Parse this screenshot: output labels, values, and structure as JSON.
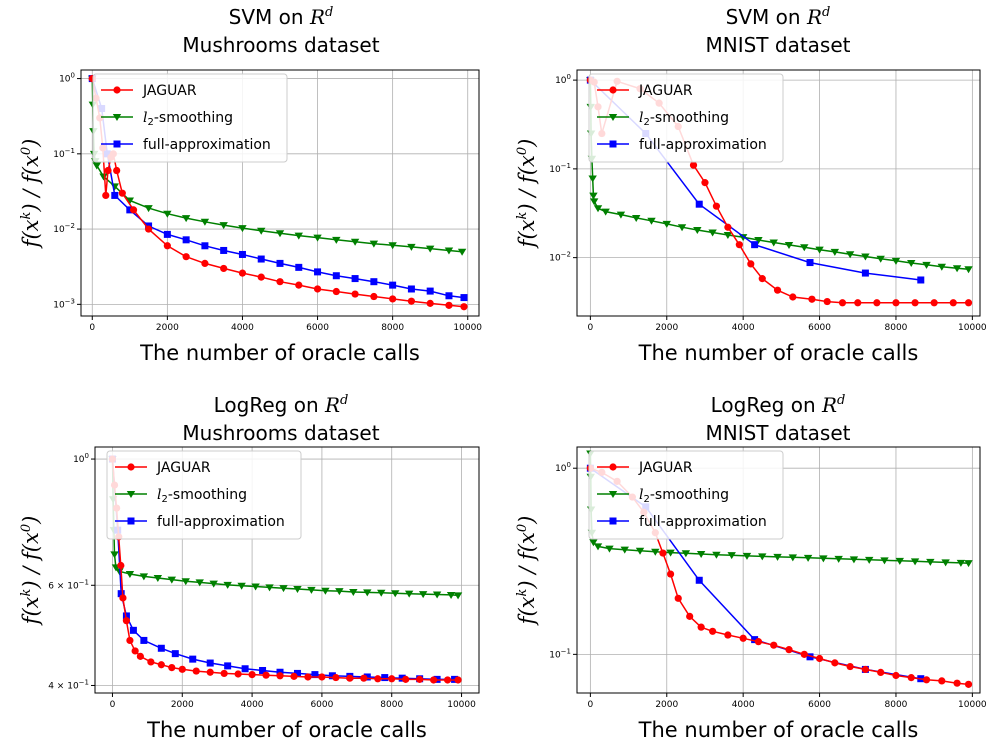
{
  "chart_data": [
    {
      "type": "line",
      "title_prefix": "SVM on ",
      "title_math": "R",
      "title_math_sup": "d",
      "subtitle": "Mushrooms dataset",
      "ylabel": "f(x^k) / f(x^0)",
      "xlabel": "The number of oracle calls",
      "yscale": "log",
      "xlim": [
        -300,
        10300
      ],
      "ylim": [
        0.0007,
        1.3
      ],
      "xticks": [
        0,
        2000,
        4000,
        6000,
        8000,
        10000
      ],
      "xtick_labels": [
        "0",
        "2000",
        "4000",
        "6000",
        "8000",
        "10000"
      ],
      "yticks": [
        0.001,
        0.01,
        0.1,
        1
      ],
      "ytick_labels": [
        "10^-3",
        "10^-2",
        "10^-1",
        "10^0"
      ],
      "grid": true,
      "legend": "top-left",
      "series": [
        {
          "name": "JAGUAR",
          "color": "#ff0000",
          "marker": "circle",
          "x": [
            0,
            100,
            200,
            280,
            360,
            420,
            500,
            560,
            650,
            800,
            1100,
            1500,
            2000,
            2500,
            3000,
            3500,
            4000,
            4500,
            5000,
            5500,
            6000,
            6500,
            7000,
            7500,
            8000,
            8500,
            9000,
            9500,
            9900
          ],
          "y": [
            1.0,
            0.55,
            0.3,
            0.12,
            0.028,
            0.06,
            0.09,
            0.1,
            0.06,
            0.03,
            0.018,
            0.01,
            0.006,
            0.0043,
            0.0035,
            0.003,
            0.0026,
            0.0023,
            0.002,
            0.0018,
            0.0016,
            0.00148,
            0.00137,
            0.00127,
            0.00118,
            0.0011,
            0.00103,
            0.00097,
            0.00093
          ]
        },
        {
          "name": "l2-smoothing",
          "color": "#008000",
          "marker": "triangle-down",
          "x": [
            0,
            15,
            30,
            50,
            80,
            120,
            300,
            600,
            1000,
            1500,
            2000,
            2500,
            3000,
            3500,
            4000,
            4500,
            5000,
            5500,
            6000,
            6500,
            7000,
            7500,
            8000,
            8500,
            9000,
            9500,
            9850
          ],
          "y": [
            1.0,
            0.45,
            0.2,
            0.1,
            0.08,
            0.07,
            0.05,
            0.037,
            0.024,
            0.019,
            0.016,
            0.014,
            0.0125,
            0.0113,
            0.0103,
            0.0095,
            0.0088,
            0.0082,
            0.0077,
            0.0072,
            0.0068,
            0.0064,
            0.0061,
            0.0058,
            0.0055,
            0.0052,
            0.005
          ]
        },
        {
          "name": "full-approximation",
          "color": "#0000ff",
          "marker": "square",
          "x": [
            0,
            250,
            400,
            600,
            1000,
            1500,
            2000,
            2500,
            3000,
            3500,
            4000,
            4500,
            5000,
            5500,
            6000,
            6500,
            7000,
            7500,
            8000,
            8500,
            9000,
            9500,
            9900
          ],
          "y": [
            1.0,
            0.4,
            0.1,
            0.028,
            0.018,
            0.011,
            0.0085,
            0.0072,
            0.006,
            0.0052,
            0.0046,
            0.004,
            0.0035,
            0.0031,
            0.0027,
            0.0024,
            0.0022,
            0.002,
            0.0018,
            0.0016,
            0.0015,
            0.0013,
            0.00123
          ]
        }
      ]
    },
    {
      "type": "line",
      "title_prefix": "SVM on ",
      "title_math": "R",
      "title_math_sup": "d",
      "subtitle": "MNIST dataset",
      "ylabel": "f(x^k) / f(x^0)",
      "xlabel": "The number of oracle calls",
      "yscale": "log",
      "xlim": [
        -350,
        10200
      ],
      "ylim": [
        0.0022,
        1.3
      ],
      "xticks": [
        0,
        2000,
        4000,
        6000,
        8000,
        10000
      ],
      "xtick_labels": [
        "0",
        "2000",
        "4000",
        "6000",
        "8000",
        "10000"
      ],
      "yticks": [
        0.01,
        0.1,
        1
      ],
      "ytick_labels": [
        "10^-2",
        "10^-1",
        "10^0"
      ],
      "grid": true,
      "legend": "top-left",
      "series": [
        {
          "name": "JAGUAR",
          "color": "#ff0000",
          "marker": "circle",
          "x": [
            0,
            100,
            200,
            300,
            700,
            1300,
            1800,
            2300,
            2700,
            3000,
            3300,
            3600,
            3900,
            4200,
            4500,
            4900,
            5300,
            5800,
            6200,
            6600,
            7000,
            7500,
            8000,
            8500,
            9000,
            9500,
            9900
          ],
          "y": [
            1.0,
            0.95,
            0.5,
            0.25,
            0.97,
            0.8,
            0.55,
            0.3,
            0.11,
            0.07,
            0.038,
            0.022,
            0.014,
            0.0085,
            0.0058,
            0.0043,
            0.0036,
            0.0034,
            0.0032,
            0.0031,
            0.0031,
            0.0031,
            0.0031,
            0.0031,
            0.0031,
            0.0031,
            0.0031
          ]
        },
        {
          "name": "l2-smoothing",
          "color": "#008000",
          "marker": "triangle-down",
          "x": [
            0,
            10,
            20,
            40,
            60,
            80,
            100,
            200,
            400,
            800,
            1200,
            1600,
            2000,
            2400,
            2800,
            3200,
            3600,
            4000,
            4400,
            4800,
            5200,
            5600,
            6000,
            6400,
            6800,
            7200,
            7600,
            8000,
            8400,
            8800,
            9200,
            9600,
            9900
          ],
          "y": [
            1.0,
            0.5,
            0.25,
            0.13,
            0.078,
            0.05,
            0.043,
            0.036,
            0.033,
            0.0305,
            0.028,
            0.026,
            0.024,
            0.022,
            0.0205,
            0.0192,
            0.018,
            0.017,
            0.0158,
            0.0148,
            0.0139,
            0.0131,
            0.0123,
            0.0116,
            0.0109,
            0.0103,
            0.0097,
            0.0092,
            0.0087,
            0.0083,
            0.0079,
            0.0076,
            0.0074
          ]
        },
        {
          "name": "full-approximation",
          "color": "#0000ff",
          "marker": "square",
          "x": [
            0,
            1450,
            2850,
            4300,
            5750,
            7200,
            8650
          ],
          "y": [
            1.0,
            0.25,
            0.04,
            0.014,
            0.0088,
            0.0067,
            0.0056
          ]
        }
      ]
    },
    {
      "type": "line",
      "title_prefix": "LogReg on ",
      "title_math": "R",
      "title_math_sup": "d",
      "subtitle": "Mushrooms dataset",
      "ylabel": "f(x^k) / f(x^0)",
      "xlabel": "The number of oracle calls",
      "yscale": "log",
      "xlim": [
        -500,
        10500
      ],
      "ylim": [
        0.388,
        1.05
      ],
      "xticks": [
        0,
        2000,
        4000,
        6000,
        8000,
        10000
      ],
      "xtick_labels": [
        "0",
        "2000",
        "4000",
        "6000",
        "8000",
        "10000"
      ],
      "yticks": [
        0.4,
        0.6,
        1
      ],
      "ytick_labels": [
        "4 × 10^-1",
        "6 × 10^-1",
        "10^0"
      ],
      "grid": true,
      "legend": "top-left",
      "series": [
        {
          "name": "JAGUAR",
          "color": "#ff0000",
          "marker": "circle",
          "x": [
            0,
            60,
            120,
            180,
            240,
            300,
            400,
            500,
            650,
            800,
            1100,
            1400,
            1700,
            2000,
            2400,
            2800,
            3200,
            3600,
            4000,
            4400,
            4800,
            5200,
            5600,
            6000,
            6400,
            6800,
            7200,
            7600,
            8000,
            8400,
            8800,
            9200,
            9600,
            9900
          ],
          "y": [
            1.0,
            0.9,
            0.82,
            0.73,
            0.65,
            0.57,
            0.52,
            0.48,
            0.46,
            0.45,
            0.44,
            0.435,
            0.43,
            0.427,
            0.424,
            0.422,
            0.42,
            0.419,
            0.418,
            0.417,
            0.416,
            0.415,
            0.414,
            0.414,
            0.413,
            0.412,
            0.412,
            0.411,
            0.411,
            0.41,
            0.41,
            0.409,
            0.409,
            0.409
          ]
        },
        {
          "name": "l2-smoothing",
          "color": "#008000",
          "marker": "triangle-down",
          "x": [
            0,
            20,
            40,
            60,
            100,
            200,
            500,
            900,
            1300,
            1700,
            2100,
            2500,
            2900,
            3300,
            3700,
            4100,
            4500,
            4900,
            5300,
            5700,
            6100,
            6500,
            6900,
            7300,
            7700,
            8100,
            8500,
            8900,
            9300,
            9700,
            9900
          ],
          "y": [
            1.0,
            0.85,
            0.75,
            0.68,
            0.645,
            0.635,
            0.628,
            0.622,
            0.618,
            0.614,
            0.61,
            0.607,
            0.604,
            0.601,
            0.599,
            0.597,
            0.595,
            0.593,
            0.591,
            0.589,
            0.587,
            0.586,
            0.584,
            0.583,
            0.582,
            0.581,
            0.58,
            0.579,
            0.578,
            0.577,
            0.576
          ]
        },
        {
          "name": "full-approximation",
          "color": "#0000ff",
          "marker": "square",
          "x": [
            0,
            150,
            250,
            400,
            600,
            900,
            1400,
            1800,
            2300,
            2800,
            3300,
            3800,
            4300,
            4800,
            5300,
            5800,
            6300,
            6800,
            7300,
            7800,
            8300,
            8800,
            9300,
            9800
          ],
          "y": [
            1.0,
            0.75,
            0.58,
            0.53,
            0.5,
            0.48,
            0.465,
            0.455,
            0.445,
            0.438,
            0.433,
            0.428,
            0.425,
            0.422,
            0.42,
            0.418,
            0.416,
            0.415,
            0.414,
            0.413,
            0.412,
            0.411,
            0.41,
            0.41
          ]
        }
      ]
    },
    {
      "type": "line",
      "title_prefix": "LogReg on ",
      "title_math": "R",
      "title_math_sup": "d",
      "subtitle": "MNIST dataset",
      "ylabel": "f(x^k) / f(x^0)",
      "xlabel": "The number of oracle calls",
      "yscale": "log",
      "xlim": [
        -350,
        10200
      ],
      "ylim": [
        0.062,
        1.3
      ],
      "xticks": [
        0,
        2000,
        4000,
        6000,
        8000,
        10000
      ],
      "xtick_labels": [
        "0",
        "2000",
        "4000",
        "6000",
        "8000",
        "10000"
      ],
      "yticks": [
        0.1,
        1
      ],
      "ytick_labels": [
        "10^-1",
        "10^0"
      ],
      "grid": true,
      "legend": "top-left",
      "series": [
        {
          "name": "JAGUAR",
          "color": "#ff0000",
          "marker": "circle",
          "x": [
            0,
            300,
            700,
            1100,
            1400,
            1700,
            1900,
            2100,
            2300,
            2600,
            2900,
            3200,
            3600,
            4000,
            4400,
            4800,
            5200,
            5600,
            6000,
            6400,
            6800,
            7200,
            7600,
            8000,
            8400,
            8800,
            9200,
            9600,
            9900
          ],
          "y": [
            1.0,
            0.95,
            0.85,
            0.7,
            0.58,
            0.45,
            0.35,
            0.27,
            0.2,
            0.16,
            0.14,
            0.133,
            0.127,
            0.122,
            0.117,
            0.112,
            0.106,
            0.1,
            0.095,
            0.09,
            0.086,
            0.083,
            0.08,
            0.077,
            0.075,
            0.073,
            0.072,
            0.07,
            0.069
          ]
        },
        {
          "name": "l2-smoothing",
          "color": "#008000",
          "marker": "triangle-down",
          "x": [
            0,
            10,
            20,
            40,
            80,
            200,
            500,
            900,
            1300,
            1700,
            2100,
            2500,
            2900,
            3300,
            3700,
            4100,
            4500,
            4900,
            5300,
            5700,
            6100,
            6500,
            6900,
            7300,
            7700,
            8100,
            8500,
            8900,
            9300,
            9700,
            9900
          ],
          "y": [
            1.2,
            0.9,
            0.6,
            0.45,
            0.4,
            0.38,
            0.37,
            0.365,
            0.36,
            0.356,
            0.352,
            0.349,
            0.346,
            0.343,
            0.341,
            0.338,
            0.336,
            0.334,
            0.332,
            0.33,
            0.328,
            0.326,
            0.324,
            0.322,
            0.32,
            0.318,
            0.316,
            0.314,
            0.312,
            0.31,
            0.309
          ]
        },
        {
          "name": "full-approximation",
          "color": "#0000ff",
          "marker": "square",
          "x": [
            0,
            1450,
            2850,
            4300,
            5750,
            7200,
            8650
          ],
          "y": [
            1.0,
            0.62,
            0.25,
            0.12,
            0.097,
            0.083,
            0.074
          ]
        }
      ]
    }
  ]
}
